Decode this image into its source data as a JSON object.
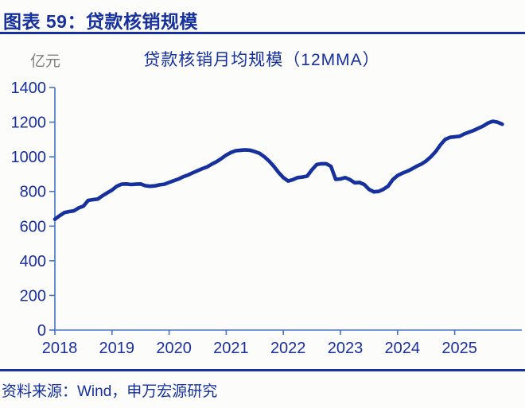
{
  "page": {
    "header": "图表 59：贷款核销规模",
    "source": "资料来源：Wind，申万宏源研究"
  },
  "chart": {
    "title": "贷款核销月均规模（12MMA）",
    "unit_label": "亿元"
  },
  "colors": {
    "accent": "#16309e",
    "line": "#16309e",
    "axis": "#4673c4",
    "tick_text": "#1a2f9e",
    "unit_text": "#7f7f7f",
    "background": "#fcfcfa"
  },
  "chart_data": {
    "type": "line",
    "title": "贷款核销月均规模（12MMA）",
    "ylabel": "亿元",
    "ylim": [
      0,
      1400
    ],
    "ytick_step": 200,
    "yticks": [
      0,
      200,
      400,
      600,
      800,
      1000,
      1200,
      1400
    ],
    "xticks": [
      2018,
      2019,
      2020,
      2021,
      2022,
      2023,
      2024,
      2025
    ],
    "grid": false,
    "legend": "none",
    "x_start_year": 2018,
    "x_step_months": 1,
    "series": [
      {
        "name": "贷款核销月均规模（12MMA）",
        "values": [
          640,
          660,
          678,
          684,
          688,
          705,
          715,
          748,
          753,
          756,
          775,
          792,
          808,
          830,
          842,
          843,
          840,
          842,
          843,
          833,
          830,
          832,
          838,
          842,
          852,
          862,
          872,
          885,
          895,
          908,
          920,
          932,
          942,
          958,
          972,
          990,
          1010,
          1025,
          1035,
          1038,
          1040,
          1038,
          1030,
          1020,
          1000,
          975,
          945,
          910,
          880,
          860,
          868,
          880,
          883,
          888,
          925,
          955,
          960,
          960,
          945,
          870,
          872,
          880,
          868,
          850,
          852,
          840,
          812,
          798,
          800,
          812,
          830,
          868,
          892,
          905,
          916,
          930,
          945,
          958,
          976,
          1000,
          1030,
          1068,
          1100,
          1112,
          1115,
          1118,
          1132,
          1142,
          1152,
          1165,
          1178,
          1195,
          1205,
          1200,
          1188
        ]
      }
    ]
  }
}
